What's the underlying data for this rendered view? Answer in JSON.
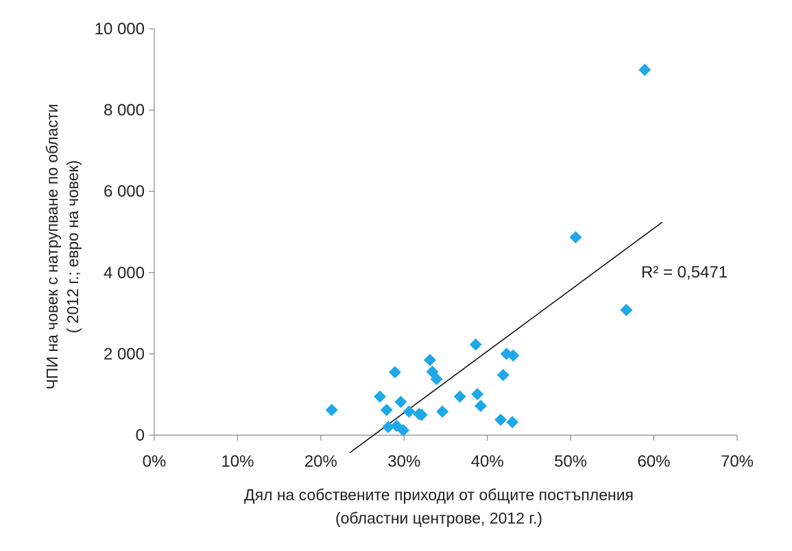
{
  "chart_data": {
    "type": "scatter",
    "title": "",
    "xlabel": [
      "Дял на собствените  приходи  от  общите  постъпления",
      "(областни центрове,  2012 г.)"
    ],
    "ylabel": [
      "ЧПИ на човек с натрупване  по области",
      "( 2012 г.; евро на човек)"
    ],
    "xlim": [
      0,
      70
    ],
    "ylim": [
      0,
      10000
    ],
    "x_ticks": [
      {
        "value": 0,
        "label": "0%"
      },
      {
        "value": 10,
        "label": "10%"
      },
      {
        "value": 20,
        "label": "20%"
      },
      {
        "value": 30,
        "label": "30%"
      },
      {
        "value": 40,
        "label": "40%"
      },
      {
        "value": 50,
        "label": "50%"
      },
      {
        "value": 60,
        "label": "60%"
      },
      {
        "value": 70,
        "label": "70%"
      }
    ],
    "y_ticks": [
      {
        "value": 0,
        "label": "0"
      },
      {
        "value": 2000,
        "label": "2 000"
      },
      {
        "value": 4000,
        "label": "4 000"
      },
      {
        "value": 6000,
        "label": "6 000"
      },
      {
        "value": 8000,
        "label": "8 000"
      },
      {
        "value": 10000,
        "label": "10 000"
      }
    ],
    "grid": false,
    "marker_color": "#1ea8e8",
    "points": [
      {
        "x": 21.3,
        "y": 620
      },
      {
        "x": 27.1,
        "y": 950
      },
      {
        "x": 27.9,
        "y": 620
      },
      {
        "x": 28.1,
        "y": 200
      },
      {
        "x": 28.9,
        "y": 1550
      },
      {
        "x": 29.1,
        "y": 230
      },
      {
        "x": 29.6,
        "y": 820
      },
      {
        "x": 29.9,
        "y": 120
      },
      {
        "x": 30.6,
        "y": 580
      },
      {
        "x": 31.8,
        "y": 520
      },
      {
        "x": 32.1,
        "y": 500
      },
      {
        "x": 33.1,
        "y": 1850
      },
      {
        "x": 33.4,
        "y": 1560
      },
      {
        "x": 33.9,
        "y": 1380
      },
      {
        "x": 34.6,
        "y": 580
      },
      {
        "x": 36.7,
        "y": 950
      },
      {
        "x": 38.6,
        "y": 2230
      },
      {
        "x": 38.8,
        "y": 1010
      },
      {
        "x": 39.2,
        "y": 720
      },
      {
        "x": 41.6,
        "y": 380
      },
      {
        "x": 41.9,
        "y": 1480
      },
      {
        "x": 42.3,
        "y": 2000
      },
      {
        "x": 43.0,
        "y": 320
      },
      {
        "x": 43.1,
        "y": 1960
      },
      {
        "x": 50.6,
        "y": 4870
      },
      {
        "x": 56.7,
        "y": 3080
      },
      {
        "x": 58.9,
        "y": 8990
      }
    ],
    "trendline": {
      "x": [
        23.5,
        61.0
      ],
      "y": [
        -430,
        5240
      ]
    },
    "annotation": "R² = 0,5471"
  }
}
